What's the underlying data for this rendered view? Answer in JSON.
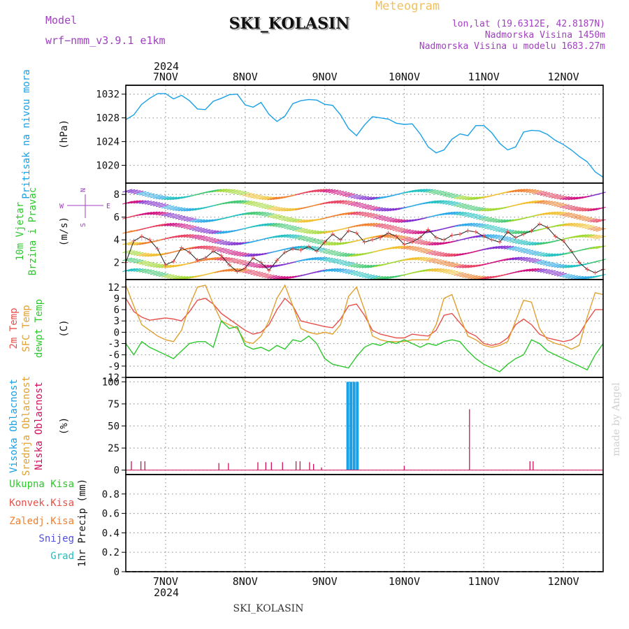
{
  "header": {
    "model_label": "Model",
    "model_name": "wrf−nmm_v3.9.1  e1km",
    "station_title": "SKI_KOLASIN",
    "product_title": "Meteogram",
    "coords": "lon,lat (19.6312E, 42.8187N)",
    "elevation": "Nadmorska Visina 1450m",
    "model_elevation": "Nadmorska Visina u modelu 1683.27m",
    "credit": "made by Angel",
    "footer_station": "SKI_KOLASIN"
  },
  "colors": {
    "pressure": "#1aa0e6",
    "temp2m": "#e8504a",
    "sfc_temp": "#e0a030",
    "dewpoint": "#2ec82e",
    "high_cloud": "#1aa0e6",
    "mid_cloud": "#e0a030",
    "low_cloud": "#d0105a",
    "model_text": "#a040c0",
    "meteogram_text": "#f0c060",
    "total_precip": "#2ec82e",
    "convective_precip": "#e8504a",
    "freezing_precip": "#f08030",
    "snow": "#5050e0",
    "hail": "#20c0c0"
  },
  "date_axis": {
    "year": "2024",
    "labels": [
      "7NOV",
      "8NOV",
      "9NOV",
      "10NOV",
      "11NOV",
      "12NOV"
    ]
  },
  "chart_data": [
    {
      "type": "line",
      "panel": "pressure",
      "ylabel_lines": [
        "Pritisak na nivou mora"
      ],
      "unit": "(hPa)",
      "yticks": [
        1020,
        1024,
        1028,
        1032
      ],
      "ylim": [
        1017,
        1033.5
      ],
      "xlim": [
        6.5,
        12.5
      ],
      "series": [
        {
          "x": [
            6.5,
            6.6,
            6.7,
            6.8,
            6.9,
            7.0,
            7.1,
            7.2,
            7.3,
            7.4,
            7.5,
            7.6,
            7.7,
            7.8,
            7.9,
            8.0,
            8.1,
            8.2,
            8.3,
            8.4,
            8.5,
            8.6,
            8.7,
            8.8,
            8.9,
            9.0,
            9.1,
            9.2,
            9.3,
            9.4,
            9.5,
            9.6,
            9.7,
            9.8,
            9.9,
            10.0,
            10.1,
            10.2,
            10.3,
            10.4,
            10.5,
            10.6,
            10.7,
            10.8,
            10.9,
            11.0,
            11.1,
            11.2,
            11.3,
            11.4,
            11.5,
            11.6,
            11.7,
            11.8,
            11.9,
            12.0,
            12.1,
            12.2,
            12.3,
            12.4,
            12.5
          ],
          "y": [
            1027.7,
            1028.5,
            1030.3,
            1031.3,
            1032.1,
            1032.1,
            1031.2,
            1031.8,
            1030.9,
            1029.5,
            1029.4,
            1030.8,
            1031.3,
            1031.9,
            1032.0,
            1030.2,
            1029.8,
            1030.6,
            1028.6,
            1027.4,
            1028.3,
            1030.4,
            1030.9,
            1031.1,
            1031.0,
            1030.3,
            1030.1,
            1028.5,
            1026.2,
            1025.0,
            1026.8,
            1028.2,
            1028.0,
            1027.8,
            1027.1,
            1026.9,
            1027.0,
            1025.3,
            1023.1,
            1022.1,
            1022.6,
            1024.4,
            1025.3,
            1025.0,
            1026.7,
            1026.7,
            1025.5,
            1023.7,
            1022.6,
            1023.1,
            1025.6,
            1025.9,
            1025.8,
            1025.2,
            1024.2,
            1023.5,
            1022.6,
            1021.5,
            1020.6,
            1018.9,
            1018.0
          ]
        }
      ]
    },
    {
      "type": "scatter",
      "panel": "wind",
      "ylabel_lines": [
        "10m Vjetar",
        "Brzina i Pravac"
      ],
      "unit": "(m/s)",
      "compass": {
        "north": "N",
        "south": "S",
        "east": "E",
        "west": "W"
      },
      "yticks": [
        2,
        4,
        6,
        8
      ],
      "ylim": [
        0.5,
        9.0
      ],
      "xlim": [
        6.5,
        12.5
      ],
      "series": [
        {
          "name": "wind speed",
          "x": [
            6.5,
            6.6,
            6.7,
            6.8,
            6.9,
            7.0,
            7.1,
            7.2,
            7.3,
            7.4,
            7.5,
            7.6,
            7.7,
            7.8,
            7.9,
            8.0,
            8.1,
            8.2,
            8.3,
            8.4,
            8.5,
            8.6,
            8.7,
            8.8,
            8.9,
            9.0,
            9.1,
            9.2,
            9.3,
            9.4,
            9.5,
            9.6,
            9.7,
            9.8,
            9.9,
            10.0,
            10.1,
            10.2,
            10.3,
            10.4,
            10.5,
            10.6,
            10.7,
            10.8,
            10.9,
            11.0,
            11.1,
            11.2,
            11.3,
            11.4,
            11.5,
            11.6,
            11.7,
            11.8,
            11.9,
            12.0,
            12.1,
            12.2,
            12.3,
            12.4,
            12.5
          ],
          "y": [
            2.0,
            3.9,
            4.3,
            4.0,
            3.2,
            1.8,
            2.1,
            3.3,
            2.9,
            2.2,
            2.4,
            3.0,
            2.6,
            1.8,
            1.2,
            1.5,
            2.4,
            2.0,
            1.3,
            2.2,
            2.9,
            3.2,
            3.1,
            3.4,
            3.0,
            3.8,
            4.5,
            4.0,
            4.8,
            4.6,
            3.8,
            4.0,
            4.2,
            4.6,
            4.3,
            3.6,
            3.8,
            4.2,
            4.9,
            4.2,
            4.0,
            4.4,
            4.5,
            4.8,
            4.7,
            4.3,
            4.0,
            3.8,
            4.7,
            4.2,
            4.5,
            4.8,
            5.4,
            5.1,
            4.3,
            3.9,
            3.0,
            2.0,
            1.4,
            1.1,
            1.4
          ]
        }
      ]
    },
    {
      "type": "line",
      "panel": "temperature",
      "ylabel_lines": [
        "2m Temp",
        "SFC Temp",
        "dewpt Temp"
      ],
      "unit": "(C)",
      "yticks": [
        -12,
        -9,
        -6,
        -3,
        0,
        3,
        6,
        9,
        12
      ],
      "ylim": [
        -12,
        14
      ],
      "xlim": [
        6.5,
        12.5
      ],
      "series": [
        {
          "name": "2m Temp",
          "x": [
            6.5,
            6.6,
            6.7,
            6.8,
            6.9,
            7.0,
            7.1,
            7.2,
            7.3,
            7.4,
            7.5,
            7.6,
            7.7,
            7.8,
            7.9,
            8.0,
            8.1,
            8.2,
            8.3,
            8.4,
            8.5,
            8.6,
            8.7,
            8.8,
            8.9,
            9.0,
            9.1,
            9.2,
            9.3,
            9.4,
            9.5,
            9.6,
            9.7,
            9.8,
            9.9,
            10.0,
            10.1,
            10.2,
            10.3,
            10.4,
            10.5,
            10.6,
            10.7,
            10.8,
            10.9,
            11.0,
            11.1,
            11.2,
            11.3,
            11.4,
            11.5,
            11.6,
            11.7,
            11.8,
            11.9,
            12.0,
            12.1,
            12.2,
            12.3,
            12.4,
            12.5
          ],
          "y": [
            9.0,
            5.5,
            4.0,
            3.2,
            3.5,
            3.8,
            3.5,
            3.0,
            5.5,
            8.5,
            9.0,
            7.5,
            5.0,
            3.5,
            2.0,
            0.5,
            -0.5,
            0.0,
            2.0,
            6.0,
            9.0,
            7.0,
            3.0,
            2.5,
            2.0,
            1.5,
            1.2,
            3.5,
            7.0,
            7.5,
            4.5,
            0.5,
            -0.5,
            -1.0,
            -1.5,
            -1.5,
            -0.5,
            -0.8,
            -1.0,
            0.5,
            4.5,
            5.0,
            2.5,
            0.0,
            -1.0,
            -3.0,
            -3.5,
            -3.0,
            -1.5,
            2.0,
            3.5,
            2.0,
            -0.5,
            -1.5,
            -2.0,
            -2.5,
            -2.0,
            -0.5,
            3.0,
            6.0,
            6.0
          ]
        },
        {
          "name": "SFC Temp",
          "x": [
            6.5,
            6.6,
            6.7,
            6.8,
            6.9,
            7.0,
            7.1,
            7.2,
            7.3,
            7.4,
            7.5,
            7.6,
            7.7,
            7.8,
            7.9,
            8.0,
            8.1,
            8.2,
            8.3,
            8.4,
            8.5,
            8.6,
            8.7,
            8.8,
            8.9,
            9.0,
            9.1,
            9.2,
            9.3,
            9.4,
            9.5,
            9.6,
            9.7,
            9.8,
            9.9,
            10.0,
            10.1,
            10.2,
            10.3,
            10.4,
            10.5,
            10.6,
            10.7,
            10.8,
            10.9,
            11.0,
            11.1,
            11.2,
            11.3,
            11.4,
            11.5,
            11.6,
            11.7,
            11.8,
            11.9,
            12.0,
            12.1,
            12.2,
            12.3,
            12.4,
            12.5
          ],
          "y": [
            12.5,
            7.0,
            2.0,
            0.5,
            -1.0,
            -2.0,
            -2.5,
            0.5,
            7.0,
            12.0,
            12.5,
            7.5,
            3.0,
            2.0,
            1.0,
            -2.5,
            -3.0,
            -1.0,
            3.0,
            9.0,
            12.5,
            7.0,
            1.0,
            0.0,
            -0.5,
            0.0,
            -0.5,
            2.0,
            9.5,
            12.0,
            6.0,
            -1.0,
            -2.0,
            -2.5,
            -2.5,
            -2.5,
            -2.0,
            -2.0,
            -2.0,
            2.0,
            9.0,
            10.0,
            4.0,
            -1.0,
            -2.0,
            -3.5,
            -4.0,
            -3.5,
            -2.5,
            3.0,
            8.5,
            8.0,
            1.0,
            -2.0,
            -3.0,
            -3.5,
            -4.5,
            -3.5,
            4.0,
            10.5,
            10.0
          ]
        },
        {
          "name": "dewpt Temp",
          "x": [
            6.5,
            6.6,
            6.7,
            6.8,
            6.9,
            7.0,
            7.1,
            7.2,
            7.3,
            7.4,
            7.5,
            7.6,
            7.7,
            7.8,
            7.9,
            8.0,
            8.1,
            8.2,
            8.3,
            8.4,
            8.5,
            8.6,
            8.7,
            8.8,
            8.9,
            9.0,
            9.1,
            9.2,
            9.3,
            9.4,
            9.5,
            9.6,
            9.7,
            9.8,
            9.9,
            10.0,
            10.1,
            10.2,
            10.3,
            10.4,
            10.5,
            10.6,
            10.7,
            10.8,
            10.9,
            11.0,
            11.1,
            11.2,
            11.3,
            11.4,
            11.5,
            11.6,
            11.7,
            11.8,
            11.9,
            12.0,
            12.1,
            12.2,
            12.3,
            12.4,
            12.5
          ],
          "y": [
            -3.0,
            -6.0,
            -2.5,
            -4.0,
            -5.0,
            -6.0,
            -7.0,
            -5.0,
            -3.0,
            -2.5,
            -2.5,
            -4.0,
            3.0,
            1.0,
            1.5,
            -3.5,
            -4.5,
            -4.0,
            -5.0,
            -3.5,
            -4.5,
            -2.0,
            -2.5,
            -1.0,
            -3.0,
            -7.0,
            -8.5,
            -9.0,
            -9.5,
            -6.5,
            -4.0,
            -3.0,
            -3.5,
            -2.5,
            -3.0,
            -2.0,
            -3.0,
            -4.0,
            -3.0,
            -3.5,
            -2.5,
            -2.0,
            -2.5,
            -5.0,
            -7.0,
            -8.5,
            -9.5,
            -10.5,
            -8.5,
            -7.0,
            -6.0,
            -2.0,
            -3.0,
            -5.0,
            -6.0,
            -7.0,
            -8.0,
            -9.0,
            -10.0,
            -6.0,
            -3.0
          ]
        }
      ]
    },
    {
      "type": "bar",
      "panel": "cloud",
      "ylabel_lines": [
        "Visoka Oblacnost",
        "Srednja Oblacnost",
        "Niska Oblacnost"
      ],
      "unit": "(%)",
      "yticks": [
        0,
        25,
        50,
        75,
        100
      ],
      "ylim": [
        -5,
        105
      ],
      "xlim": [
        6.5,
        12.5
      ],
      "series": [
        {
          "name": "Visoka Oblacnost",
          "x": [
            9.29,
            9.33,
            9.37,
            9.41
          ],
          "values": [
            100,
            100,
            100,
            100
          ]
        },
        {
          "name": "Niska Oblacnost",
          "x": [
            6.57,
            6.69,
            6.74,
            7.67,
            7.79,
            8.16,
            8.26,
            8.33,
            8.47,
            8.64,
            8.69,
            8.81,
            8.86,
            8.96,
            10.0,
            10.82,
            11.58,
            11.62
          ],
          "values": [
            10,
            10,
            10,
            8,
            8,
            9,
            9,
            9,
            9,
            10,
            10,
            9,
            7,
            3,
            5,
            69,
            10,
            10
          ]
        }
      ]
    },
    {
      "type": "bar",
      "panel": "precipitation",
      "ylabel_lines": [
        "Ukupna Kisa",
        "Konvek.Kisa",
        "Zaledj.Kisa",
        "Snijeg",
        "Grad"
      ],
      "unit": "1hr Precip (mm)",
      "yticks": [
        "0",
        "0.2",
        "0.4",
        "0.6",
        "0.8"
      ],
      "ylim": [
        0,
        1.0
      ],
      "xlim": [
        6.5,
        12.5
      ],
      "series": []
    }
  ]
}
